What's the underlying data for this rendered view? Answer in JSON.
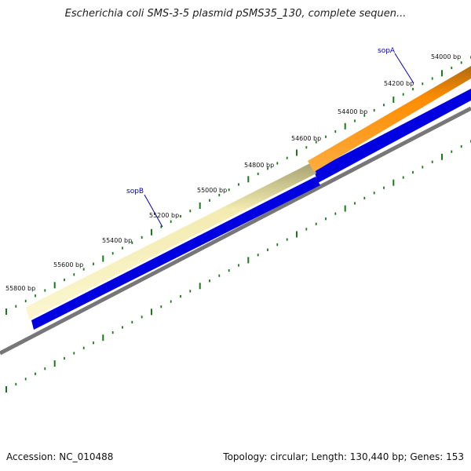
{
  "title": "Escherichia coli SMS-3-5 plasmid pSMS35_130, complete sequen...",
  "footer": {
    "accession": "Accession: NC_010488",
    "summary": "Topology: circular; Length: 130,440 bp; Genes: 153"
  },
  "ruler_labels": [
    "54000 bp",
    "54200 bp",
    "54400 bp",
    "54600 bp",
    "54800 bp",
    "55000 bp",
    "55200 bp",
    "55400 bp",
    "55600 bp",
    "55800 bp"
  ],
  "genes": [
    {
      "name": "sopB",
      "color": "#ff8c00"
    },
    {
      "name": "sopA",
      "color": "#f0e68c"
    }
  ],
  "colors": {
    "strand": "#0000e0",
    "backbone": "#777777",
    "tick": "#1a7a1a",
    "gene_label": "#0000bb"
  }
}
